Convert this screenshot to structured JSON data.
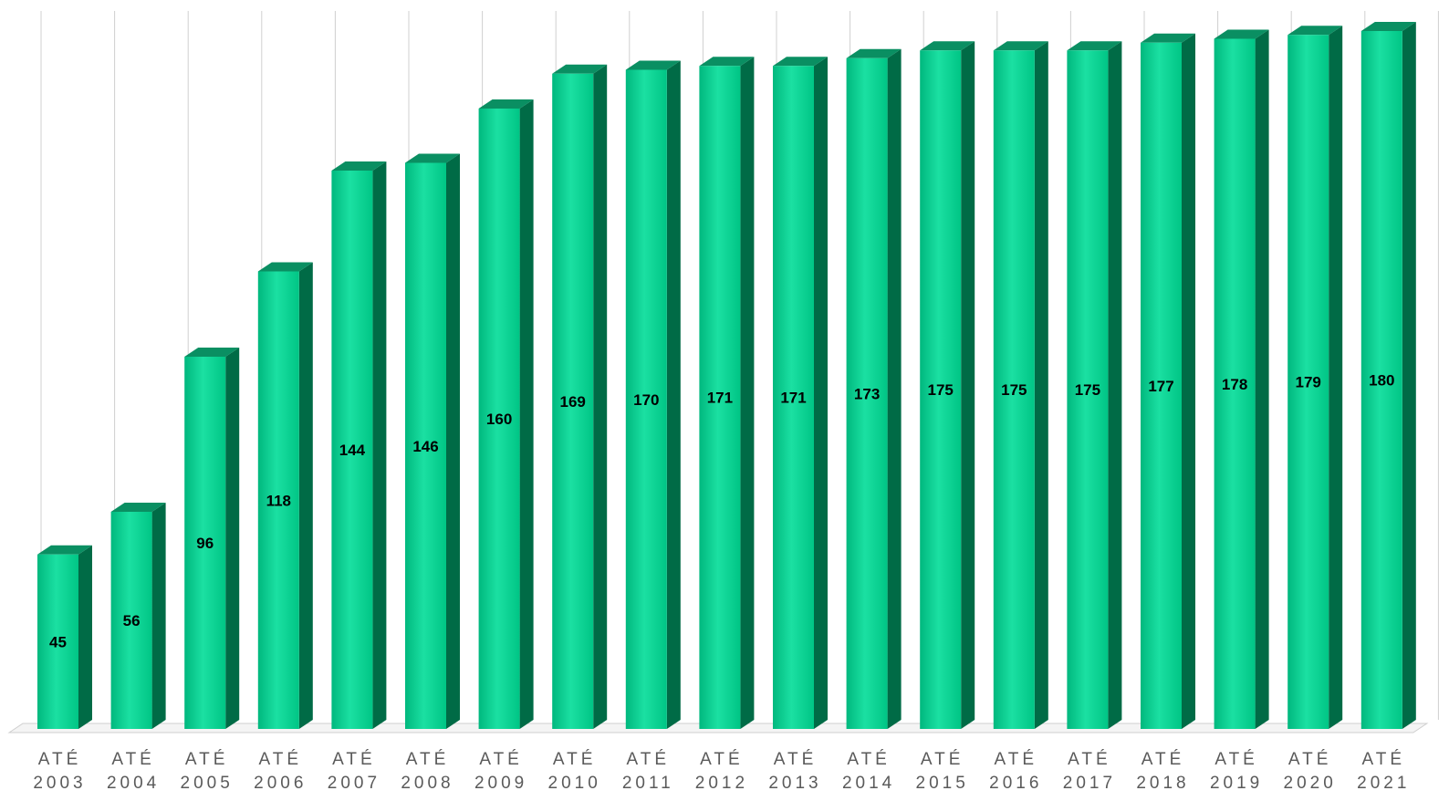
{
  "chart_data": {
    "type": "bar",
    "style": "3d-column",
    "categories": [
      [
        "ATÉ",
        "2003"
      ],
      [
        "ATÉ",
        "2004"
      ],
      [
        "ATÉ",
        "2005"
      ],
      [
        "ATÉ",
        "2006"
      ],
      [
        "ATÉ",
        "2007"
      ],
      [
        "ATÉ",
        "2008"
      ],
      [
        "ATÉ",
        "2009"
      ],
      [
        "ATÉ",
        "2010"
      ],
      [
        "ATÉ",
        "2011"
      ],
      [
        "ATÉ",
        "2012"
      ],
      [
        "ATÉ",
        "2013"
      ],
      [
        "ATÉ",
        "2014"
      ],
      [
        "ATÉ",
        "2015"
      ],
      [
        "ATÉ",
        "2016"
      ],
      [
        "ATÉ",
        "2017"
      ],
      [
        "ATÉ",
        "2018"
      ],
      [
        "ATÉ",
        "2019"
      ],
      [
        "ATÉ",
        "2020"
      ],
      [
        "ATÉ",
        "2021"
      ]
    ],
    "values": [
      45,
      56,
      96,
      118,
      144,
      146,
      160,
      169,
      170,
      171,
      171,
      173,
      175,
      175,
      175,
      177,
      178,
      179,
      180
    ],
    "title": "",
    "xlabel": "",
    "ylabel": "",
    "ylim": [
      0,
      180
    ],
    "grid": "vertical",
    "legend": "none",
    "data_labels": "inside-middle",
    "colors": {
      "bar_front": "#00cc8c",
      "bar_front_light": "#1be0a2",
      "bar_side": "#006b46",
      "bar_top": "#0a8f62",
      "grid": "#d0d0d0",
      "label_text": "#5a5a5a",
      "value_text": "#000000"
    }
  }
}
